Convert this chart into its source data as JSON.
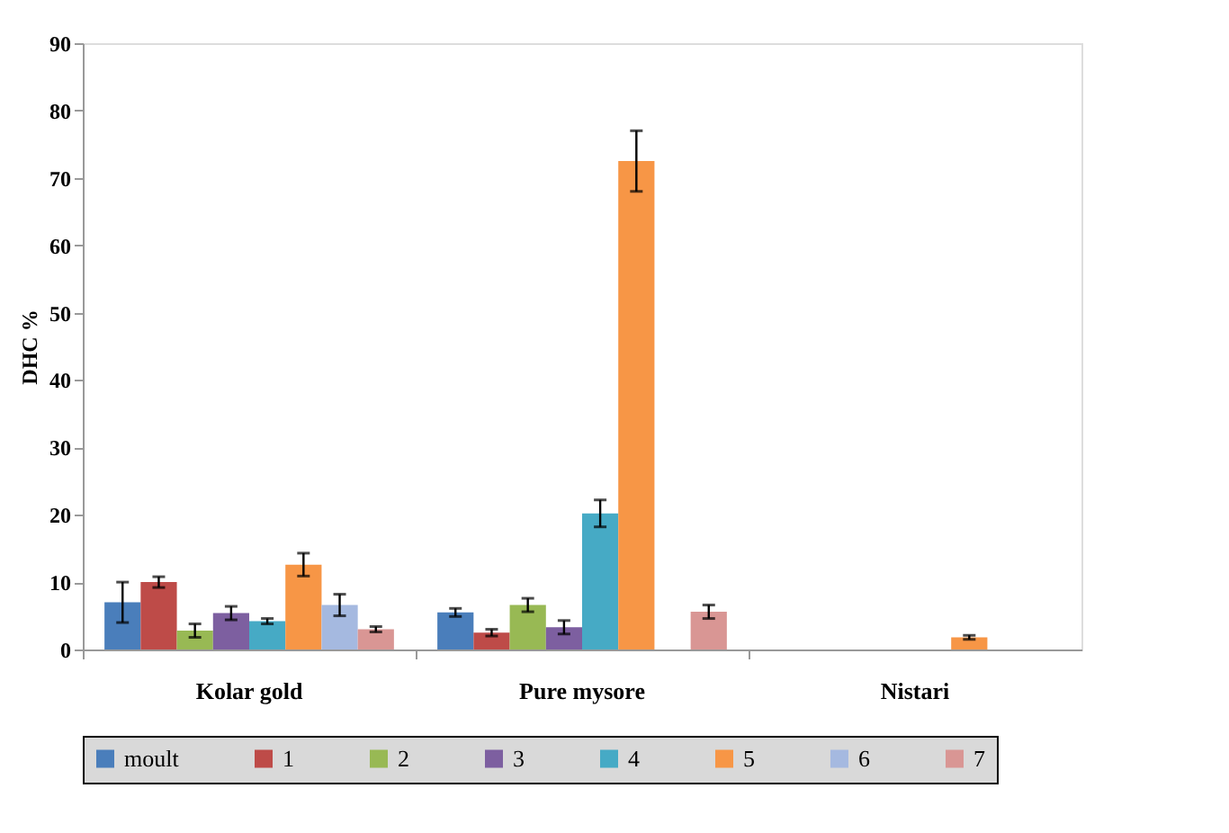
{
  "chart_data": {
    "type": "bar",
    "ylabel": "DHC %",
    "categories": [
      "Kolar gold",
      "Pure mysore",
      "Nistari"
    ],
    "ylim": [
      0,
      90
    ],
    "yticks": [
      0,
      10,
      20,
      30,
      40,
      50,
      60,
      70,
      80,
      90
    ],
    "grid": false,
    "legend": "bottom",
    "series": [
      {
        "name": "moult",
        "color": "#4a7ebb",
        "values": [
          7,
          5.5,
          null
        ],
        "errors": [
          3,
          0.6,
          null
        ]
      },
      {
        "name": "1",
        "color": "#be4b48",
        "values": [
          10,
          2.5,
          null
        ],
        "errors": [
          0.8,
          0.5,
          null
        ]
      },
      {
        "name": "2",
        "color": "#98b954",
        "values": [
          2.8,
          6.6,
          null
        ],
        "errors": [
          1,
          1,
          null
        ]
      },
      {
        "name": "3",
        "color": "#7d5fa0",
        "values": [
          5.4,
          3.3,
          null
        ],
        "errors": [
          1,
          1,
          null
        ]
      },
      {
        "name": "4",
        "color": "#46aac5",
        "values": [
          4.2,
          20.2,
          null
        ],
        "errors": [
          0.4,
          2,
          null
        ]
      },
      {
        "name": "5",
        "color": "#f79646",
        "values": [
          12.6,
          72.5,
          1.8
        ],
        "errors": [
          1.7,
          4.5,
          0.3
        ]
      },
      {
        "name": "6",
        "color": "#a5b9e0",
        "values": [
          6.6,
          null,
          null
        ],
        "errors": [
          1.6,
          null,
          null
        ]
      },
      {
        "name": "7",
        "color": "#d99694",
        "values": [
          3,
          5.6,
          null
        ],
        "errors": [
          0.4,
          1,
          null
        ]
      }
    ]
  }
}
